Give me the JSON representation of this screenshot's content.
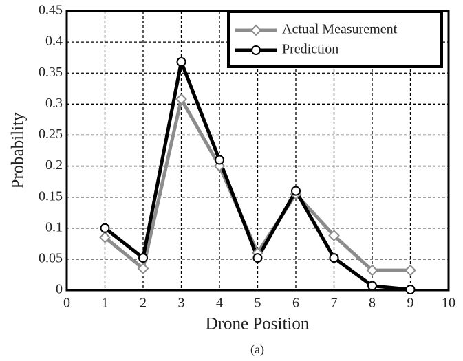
{
  "chart_data": {
    "type": "line",
    "x": [
      1,
      2,
      3,
      4,
      5,
      6,
      7,
      8,
      9
    ],
    "series": [
      {
        "name": "Actual Measurement",
        "color": "#8c8c8c",
        "marker": "diamond",
        "values": [
          0.085,
          0.035,
          0.308,
          0.2,
          0.06,
          0.155,
          0.088,
          0.032,
          0.032
        ]
      },
      {
        "name": "Prediction",
        "color": "#000000",
        "marker": "circle",
        "values": [
          0.1,
          0.052,
          0.368,
          0.21,
          0.052,
          0.16,
          0.052,
          0.007,
          0.001
        ]
      }
    ],
    "xlabel": "Drone Position",
    "ylabel": "Probability",
    "caption": "(a)",
    "xlim": [
      0,
      10
    ],
    "xticks": [
      0,
      1,
      2,
      3,
      4,
      5,
      6,
      7,
      8,
      9,
      10
    ],
    "ylim": [
      0,
      0.45
    ],
    "yticks": [
      0,
      0.05,
      0.1,
      0.15,
      0.2,
      0.25,
      0.3,
      0.35,
      0.4,
      0.45
    ],
    "grid": true,
    "legend": "upper right"
  }
}
